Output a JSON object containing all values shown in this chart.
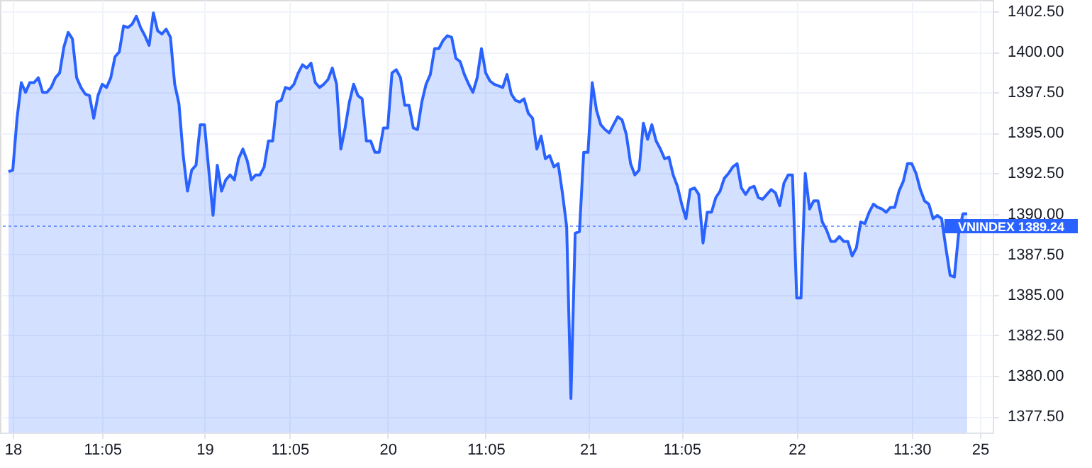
{
  "chart_data": {
    "type": "area",
    "categories": [
      null,
      "18",
      null,
      null,
      null,
      null,
      null,
      null,
      null,
      null,
      null,
      null,
      null,
      null,
      null,
      null,
      null,
      null,
      null,
      null,
      null,
      null,
      "11:05",
      null,
      null,
      null,
      null,
      null,
      null,
      null,
      null,
      null,
      null,
      null,
      null,
      null,
      null,
      null,
      null,
      null,
      null,
      null,
      null,
      null,
      null,
      null,
      "19",
      null,
      null,
      null,
      null,
      null,
      null,
      null,
      null,
      null,
      null,
      null,
      null,
      null,
      null,
      null,
      null,
      null,
      null,
      null,
      "11:05",
      null,
      null,
      null,
      null,
      null,
      null,
      null,
      null,
      null,
      null,
      null,
      null,
      null,
      null,
      null,
      null,
      null,
      null,
      null,
      null,
      null,
      null,
      "20",
      null,
      null,
      null,
      null,
      null,
      null,
      null,
      null,
      null,
      null,
      null,
      null,
      null,
      null,
      null,
      null,
      null,
      null,
      null,
      null,
      null,
      null,
      "11:05",
      null,
      null,
      null,
      null,
      null,
      null,
      null,
      null,
      null,
      null,
      null,
      null,
      null,
      null,
      null,
      null,
      null,
      null,
      null,
      null,
      null,
      null,
      null,
      "21",
      null,
      null,
      null,
      null,
      null,
      null,
      null,
      null,
      null,
      null,
      null,
      null,
      null,
      null,
      null,
      null,
      null,
      null,
      null,
      null,
      null,
      "11:05",
      null,
      null,
      null,
      null,
      null,
      null,
      null,
      null,
      null,
      null,
      null,
      null,
      null,
      null,
      null,
      null,
      null,
      null,
      null,
      null,
      null,
      null,
      null,
      null,
      null,
      null,
      "22",
      null,
      null,
      null,
      null,
      null,
      null,
      null,
      null,
      null,
      null,
      null,
      null,
      null,
      null,
      null,
      null,
      null,
      null,
      null,
      null,
      null,
      null,
      null,
      null,
      null,
      null,
      "11:30",
      null,
      null,
      null,
      null,
      null,
      null,
      null,
      null,
      null,
      null,
      null,
      null,
      null,
      null,
      null,
      "25",
      null,
      null,
      null
    ],
    "series": [
      {
        "color": "#2962ff",
        "values": [
          1392.6,
          1392.7,
          1395.9,
          1398.1,
          1397.5,
          1398.1,
          1398.1,
          1398.4,
          1397.5,
          1397.5,
          1397.8,
          1398.4,
          1398.7,
          1400.3,
          1401.2,
          1400.8,
          1398.4,
          1397.8,
          1397.4,
          1397.3,
          1395.9,
          1397.3,
          1398.0,
          1397.8,
          1398.4,
          1399.7,
          1400.0,
          1401.6,
          1401.5,
          1401.7,
          1402.2,
          1401.5,
          1401.0,
          1400.4,
          1402.4,
          1401.3,
          1401.1,
          1401.4,
          1400.9,
          1398.0,
          1396.8,
          1393.6,
          1391.4,
          1392.7,
          1393.0,
          1395.5,
          1395.5,
          1392.7,
          1389.9,
          1393.0,
          1391.4,
          1392.1,
          1392.4,
          1392.1,
          1393.4,
          1394.0,
          1393.3,
          1392.1,
          1392.4,
          1392.4,
          1392.9,
          1394.5,
          1394.5,
          1396.9,
          1397.0,
          1397.8,
          1397.7,
          1398.0,
          1398.7,
          1399.2,
          1399.0,
          1399.3,
          1398.1,
          1397.8,
          1398.0,
          1398.3,
          1399.0,
          1398.0,
          1394.0,
          1395.3,
          1396.9,
          1398.0,
          1397.3,
          1397.1,
          1394.5,
          1394.5,
          1393.8,
          1393.8,
          1395.3,
          1395.3,
          1398.7,
          1398.9,
          1398.4,
          1396.7,
          1396.7,
          1395.3,
          1395.2,
          1396.9,
          1398.0,
          1398.6,
          1400.2,
          1400.2,
          1400.7,
          1401.0,
          1400.9,
          1399.6,
          1399.4,
          1398.6,
          1398.0,
          1397.5,
          1398.4,
          1400.2,
          1398.7,
          1398.2,
          1398.0,
          1397.9,
          1397.8,
          1398.6,
          1397.4,
          1397.0,
          1396.9,
          1397.1,
          1396.2,
          1395.9,
          1394.0,
          1394.8,
          1393.4,
          1393.6,
          1392.9,
          1393.1,
          1391.3,
          1389.2,
          1378.6,
          1388.8,
          1388.9,
          1393.8,
          1393.8,
          1398.1,
          1396.4,
          1395.5,
          1395.2,
          1395.0,
          1395.5,
          1396.0,
          1395.8,
          1394.9,
          1393.1,
          1392.4,
          1392.7,
          1395.6,
          1394.6,
          1395.5,
          1394.5,
          1394.0,
          1393.4,
          1393.5,
          1392.4,
          1391.7,
          1390.6,
          1389.7,
          1391.5,
          1391.6,
          1391.2,
          1388.2,
          1390.1,
          1390.1,
          1391.0,
          1391.4,
          1392.2,
          1392.5,
          1392.9,
          1393.1,
          1391.6,
          1391.2,
          1391.6,
          1391.7,
          1391.0,
          1390.9,
          1391.2,
          1391.5,
          1391.3,
          1390.5,
          1391.9,
          1392.4,
          1392.4,
          1384.8,
          1384.8,
          1392.5,
          1390.3,
          1390.8,
          1390.8,
          1389.5,
          1389.0,
          1388.3,
          1388.3,
          1388.6,
          1388.3,
          1388.3,
          1387.4,
          1387.9,
          1389.5,
          1389.4,
          1390.1,
          1390.6,
          1390.4,
          1390.3,
          1390.1,
          1390.4,
          1390.4,
          1391.4,
          1392.0,
          1393.1,
          1393.1,
          1392.5,
          1391.5,
          1390.8,
          1390.6,
          1389.7,
          1389.9,
          1389.7,
          1387.9,
          1386.2,
          1386.1,
          1388.8,
          1390.0,
          1390.0,
          null,
          null,
          null,
          null,
          null,
          null
        ]
      }
    ],
    "ylim": [
      1376.5,
      1403.2
    ],
    "yticks": [
      {
        "value": 1377.5,
        "label": "1377.50"
      },
      {
        "value": 1380,
        "label": "1380.00"
      },
      {
        "value": 1382.5,
        "label": "1382.50"
      },
      {
        "value": 1385,
        "label": "1385.00"
      },
      {
        "value": 1387.5,
        "label": "1387.50"
      },
      {
        "value": 1390,
        "label": "1390.00"
      },
      {
        "value": 1392.5,
        "label": "1392.50"
      },
      {
        "value": 1395,
        "label": "1395.00"
      },
      {
        "value": 1397.5,
        "label": "1397.50"
      },
      {
        "value": 1400,
        "label": "1400.00"
      },
      {
        "value": 1402.5,
        "label": "1402.50"
      }
    ],
    "ref_lines": [
      {
        "axis": "y",
        "value": 1389.24,
        "label": "VNINDEX 1389.24",
        "color": "#2962ff",
        "line_style": "dotted"
      }
    ],
    "grid": true,
    "marker": "none",
    "line_style": "solid"
  }
}
